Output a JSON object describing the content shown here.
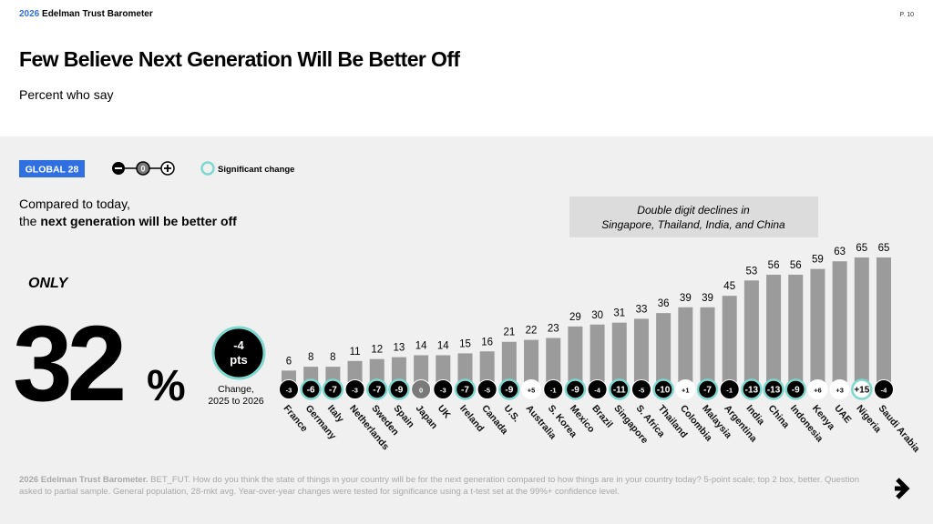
{
  "header": {
    "brand_year": "2026",
    "brand_name": "Edelman Trust Barometer",
    "page": "P. 10",
    "title": "Few Believe Next Generation Will Be Better Off",
    "subtitle": "Percent who say"
  },
  "legend": {
    "global": "GLOBAL 28",
    "zero": "0",
    "significant": "Significant change"
  },
  "intro": {
    "line1": "Compared to today,",
    "line2_prefix": "the",
    "line2_bold": "next generation will be better off"
  },
  "headline": {
    "only": "ONLY",
    "value": 32,
    "unit": "%",
    "change": -4,
    "change_unit": "pts",
    "change_caption_1": "Change,",
    "change_caption_2": "2025 to 2026"
  },
  "annotation": {
    "line1": "Double digit declines in",
    "line2": "Singapore, Thailand, India, and China"
  },
  "footnote": {
    "bold": "2026 Edelman Trust Barometer.",
    "text": "BET_FUT. How do you think the state of things in your country will be for the next generation compared to how things are in your country today? 5-point scale; top 2 box, better. Question asked to partial sample. General population, 28-mkt avg. Year-over-year changes were tested for significance using a t-test set at the 99%+ confidence level."
  },
  "chart_data": {
    "type": "bar",
    "color": "#9b9b9b",
    "categories": [
      "France",
      "Germany",
      "Italy",
      "Netherlands",
      "Sweden",
      "Spain",
      "Japan",
      "UK",
      "Ireland",
      "Canada",
      "U.S.",
      "Australia",
      "S. Korea",
      "Mexico",
      "Brazil",
      "Singapore",
      "S. Africa",
      "Thailand",
      "Colombia",
      "Malaysia",
      "Argentina",
      "India",
      "China",
      "Indonesia",
      "Kenya",
      "UAE",
      "Nigeria",
      "Saudi Arabia"
    ],
    "values": [
      6,
      8,
      8,
      11,
      12,
      13,
      14,
      14,
      15,
      16,
      21,
      22,
      23,
      29,
      30,
      31,
      33,
      36,
      39,
      39,
      45,
      53,
      56,
      56,
      59,
      63,
      65,
      65
    ],
    "changes": {
      "values": [
        -3,
        -6,
        -7,
        -3,
        -7,
        -9,
        0,
        -3,
        -7,
        -5,
        -9,
        5,
        -1,
        -9,
        -4,
        -11,
        -5,
        -10,
        1,
        -7,
        -1,
        -13,
        -13,
        -9,
        6,
        3,
        15,
        -4
      ],
      "value_labels": [
        "-3",
        "-6",
        "-7",
        "-3",
        "-7",
        "-9",
        "0",
        "-3",
        "-7",
        "-5",
        "-9",
        "+5",
        "-1",
        "-9",
        "-4",
        "-11",
        "-5",
        "-10",
        "+1",
        "-7",
        "-1",
        "-13",
        "-13",
        "-9",
        "+6",
        "+3",
        "+15",
        "-4"
      ],
      "significant": [
        false,
        true,
        true,
        false,
        true,
        true,
        false,
        false,
        true,
        false,
        true,
        false,
        false,
        true,
        false,
        true,
        false,
        true,
        false,
        true,
        false,
        true,
        true,
        true,
        false,
        false,
        true,
        false
      ],
      "negative_color": "#000000",
      "positive_color": "#ffffff",
      "zero_color": "#7a7a7a",
      "significant_color": "#7fd8cf"
    }
  }
}
